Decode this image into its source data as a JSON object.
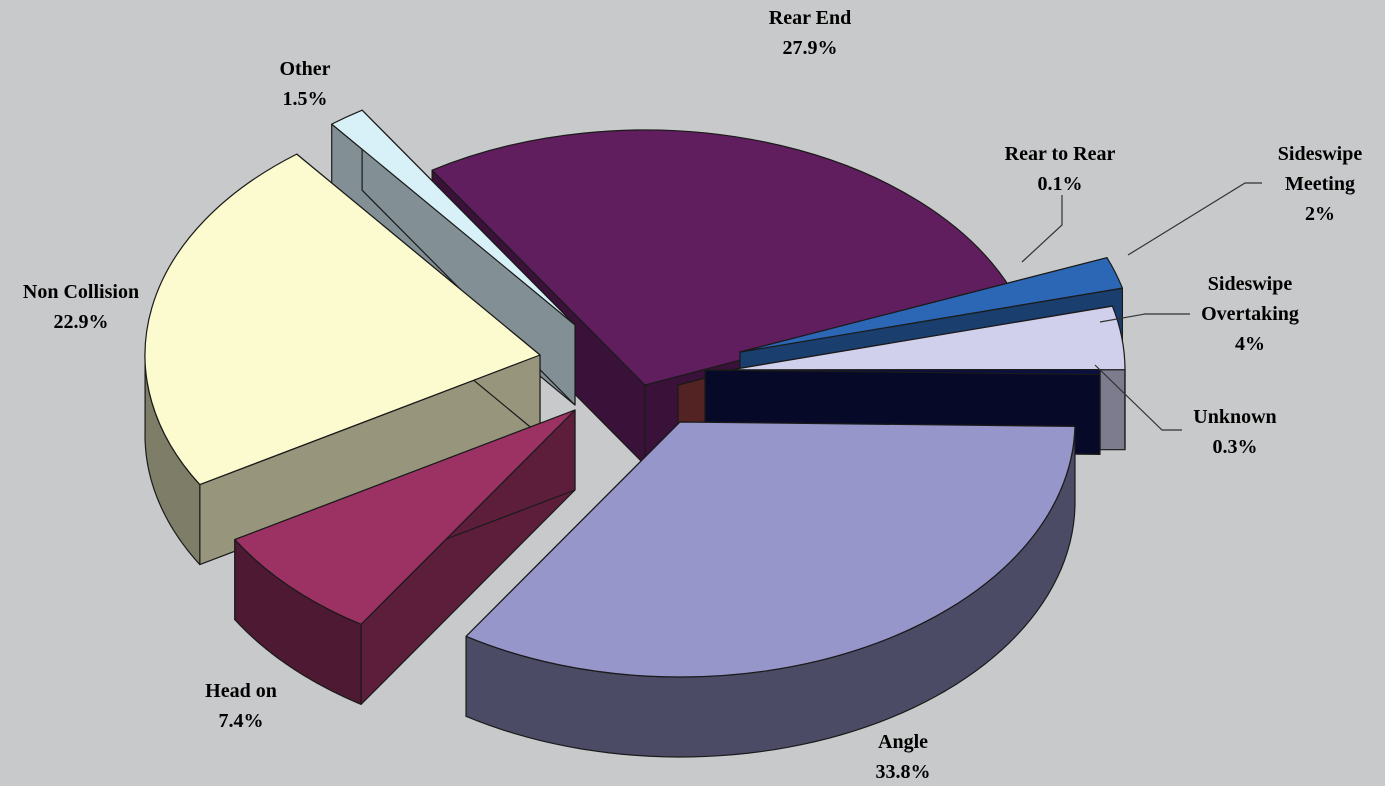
{
  "chart_data": {
    "type": "pie",
    "style": "3d-exploded",
    "title": "",
    "slices": [
      {
        "label": "Rear End",
        "value": 27.9,
        "value_label": "27.9%",
        "color": "#611e5f"
      },
      {
        "label": "Rear to Rear",
        "value": 0.1,
        "value_label": "0.1%",
        "color": "#8a3a3a"
      },
      {
        "label": "Sideswipe Meeting",
        "label_lines": [
          "Sideswipe",
          "Meeting"
        ],
        "value": 2,
        "value_label": "2%",
        "color": "#2c67b5"
      },
      {
        "label": "Sideswipe Overtaking",
        "label_lines": [
          "Sideswipe",
          "Overtaking"
        ],
        "value": 4,
        "value_label": "4%",
        "color": "#d0cfec"
      },
      {
        "label": "Unknown",
        "value": 0.3,
        "value_label": "0.3%",
        "color": "#0a0f42"
      },
      {
        "label": "Angle",
        "value": 33.8,
        "value_label": "33.8%",
        "color": "#9796cb"
      },
      {
        "label": "Head on",
        "value": 7.4,
        "value_label": "7.4%",
        "color": "#9b3263"
      },
      {
        "label": "Non Collision",
        "value": 22.9,
        "value_label": "22.9%",
        "color": "#fcfacf"
      },
      {
        "label": "Other",
        "value": 1.5,
        "value_label": "1.5%",
        "color": "#d8f0f8"
      }
    ]
  }
}
